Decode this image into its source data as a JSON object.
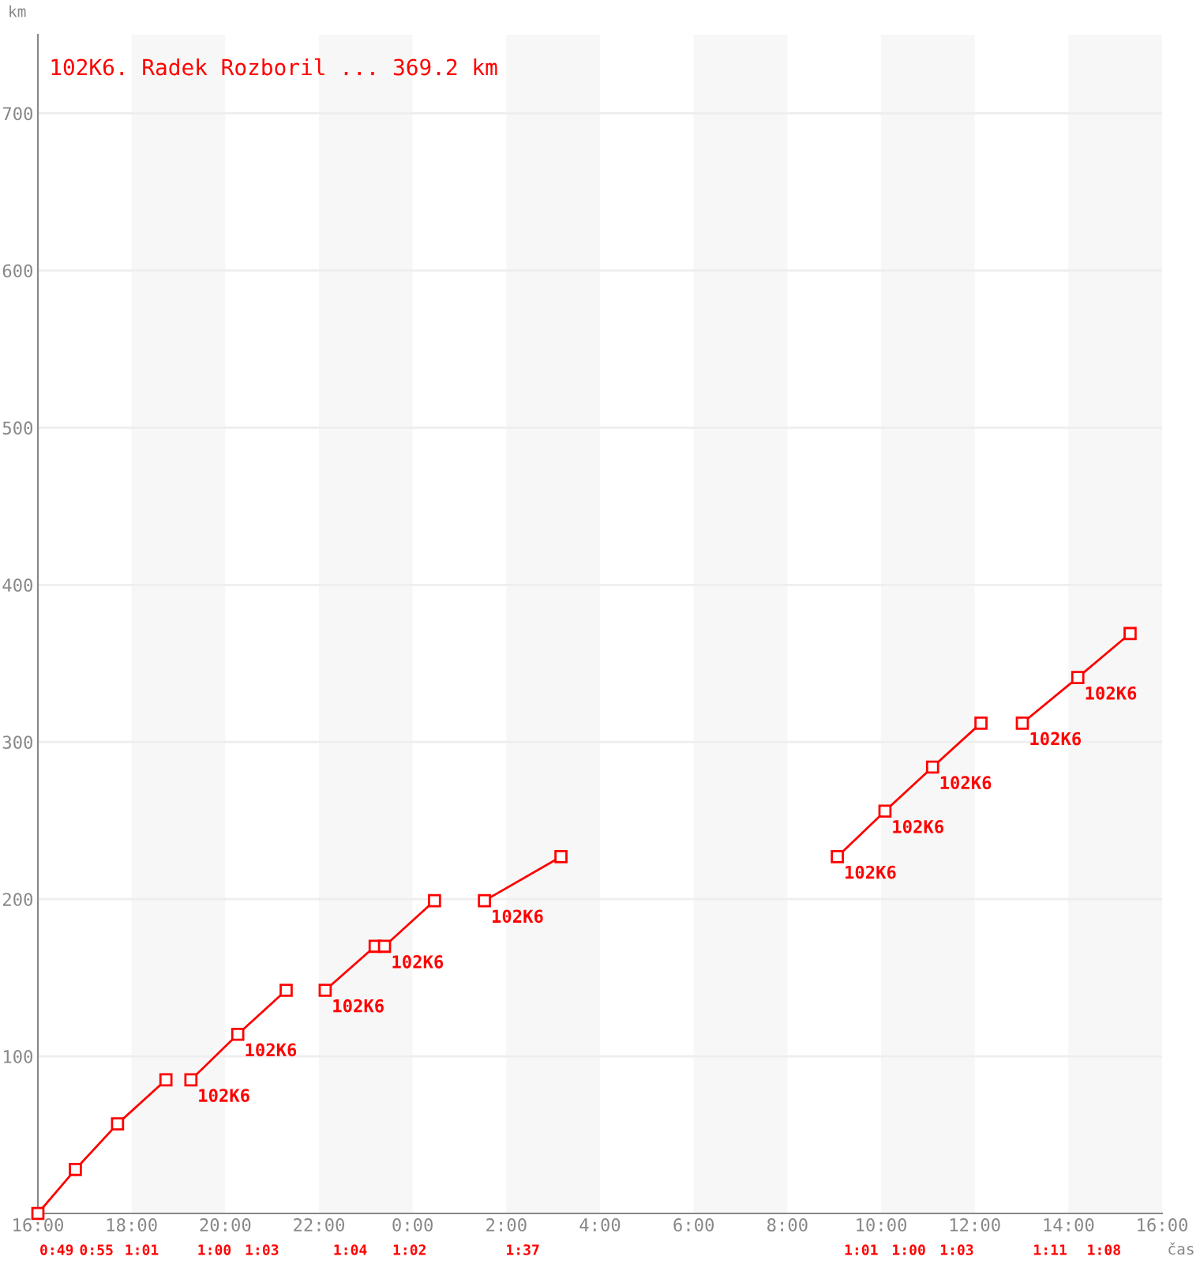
{
  "chart_data": {
    "type": "line",
    "title": "102K6. Radek Rozboril ... 369.2 km",
    "xlabel": "čas",
    "ylabel": "km",
    "xlim": [
      "2000-01-01T16:00",
      "2000-01-02T16:00"
    ],
    "ylim": [
      0,
      750
    ],
    "xticks": [
      {
        "value": "2000-01-01T16:00",
        "label": "16:00"
      },
      {
        "value": "2000-01-01T18:00",
        "label": "18:00"
      },
      {
        "value": "2000-01-01T20:00",
        "label": "20:00"
      },
      {
        "value": "2000-01-01T22:00",
        "label": "22:00"
      },
      {
        "value": "2000-01-02T00:00",
        "label": "0:00"
      },
      {
        "value": "2000-01-02T02:00",
        "label": "2:00"
      },
      {
        "value": "2000-01-02T04:00",
        "label": "4:00"
      },
      {
        "value": "2000-01-02T06:00",
        "label": "6:00"
      },
      {
        "value": "2000-01-02T08:00",
        "label": "8:00"
      },
      {
        "value": "2000-01-02T10:00",
        "label": "10:00"
      },
      {
        "value": "2000-01-02T12:00",
        "label": "12:00"
      },
      {
        "value": "2000-01-02T14:00",
        "label": "14:00"
      },
      {
        "value": "2000-01-02T16:00",
        "label": "16:00"
      }
    ],
    "yticks": [
      100,
      200,
      300,
      400,
      500,
      600,
      700
    ],
    "grid": "y",
    "marker": "square",
    "line_style": "solid",
    "series": [
      {
        "color": "#ff0000",
        "x": [
          "2000-01-01T16:00",
          "2000-01-01T16:48",
          "2000-01-01T17:42",
          "2000-01-01T18:44"
        ],
        "values": [
          0,
          28,
          57,
          85
        ]
      },
      {
        "color": "#ff0000",
        "x": [
          "2000-01-01T19:16",
          "2000-01-01T20:16",
          "2000-01-01T21:18"
        ],
        "values": [
          85,
          114,
          142
        ]
      },
      {
        "color": "#ff0000",
        "x": [
          "2000-01-01T22:08",
          "2000-01-01T23:12",
          "2000-01-01T23:24",
          "2000-01-02T00:28"
        ],
        "values": [
          142,
          170,
          170,
          199
        ]
      },
      {
        "color": "#ff0000",
        "x": [
          "2000-01-02T01:32",
          "2000-01-02T03:10"
        ],
        "values": [
          199,
          227
        ]
      },
      {
        "color": "#ff0000",
        "x": [
          "2000-01-02T09:04",
          "2000-01-02T10:05",
          "2000-01-02T11:06",
          "2000-01-02T12:08"
        ],
        "values": [
          227,
          256,
          284,
          312
        ]
      },
      {
        "color": "#ff0000",
        "x": [
          "2000-01-02T13:01",
          "2000-01-02T14:12",
          "2000-01-02T15:19"
        ],
        "values": [
          312,
          341,
          369
        ]
      }
    ],
    "bands": [
      {
        "axis": "x",
        "from": "2000-01-01T18:00",
        "to": "2000-01-01T20:00",
        "color": "#f7f7f7"
      },
      {
        "axis": "x",
        "from": "2000-01-01T22:00",
        "to": "2000-01-02T00:00",
        "color": "#f7f7f7"
      },
      {
        "axis": "x",
        "from": "2000-01-02T02:00",
        "to": "2000-01-02T04:00",
        "color": "#f7f7f7"
      },
      {
        "axis": "x",
        "from": "2000-01-02T06:00",
        "to": "2000-01-02T08:00",
        "color": "#f7f7f7"
      },
      {
        "axis": "x",
        "from": "2000-01-02T10:00",
        "to": "2000-01-02T12:00",
        "color": "#f7f7f7"
      },
      {
        "axis": "x",
        "from": "2000-01-02T14:00",
        "to": "2000-01-02T16:00",
        "color": "#f7f7f7"
      }
    ],
    "annotations": [
      {
        "text": "102K6",
        "x": "2000-01-01T19:16",
        "y": 85
      },
      {
        "text": "102K6",
        "x": "2000-01-01T20:16",
        "y": 114
      },
      {
        "text": "102K6",
        "x": "2000-01-01T22:08",
        "y": 142
      },
      {
        "text": "102K6",
        "x": "2000-01-01T23:24",
        "y": 170
      },
      {
        "text": "102K6",
        "x": "2000-01-02T01:32",
        "y": 199
      },
      {
        "text": "102K6",
        "x": "2000-01-02T09:04",
        "y": 227
      },
      {
        "text": "102K6",
        "x": "2000-01-02T10:05",
        "y": 256
      },
      {
        "text": "102K6",
        "x": "2000-01-02T11:06",
        "y": 284
      },
      {
        "text": "102K6",
        "x": "2000-01-02T13:01",
        "y": 312
      },
      {
        "text": "102K6",
        "x": "2000-01-02T14:12",
        "y": 341
      },
      "0:49",
      "0:55",
      "1:01",
      "1:00",
      "1:03",
      "1:04",
      "1:02",
      "1:37",
      "1:01",
      "1:00",
      "1:03",
      "1:11",
      "1:08"
    ]
  }
}
